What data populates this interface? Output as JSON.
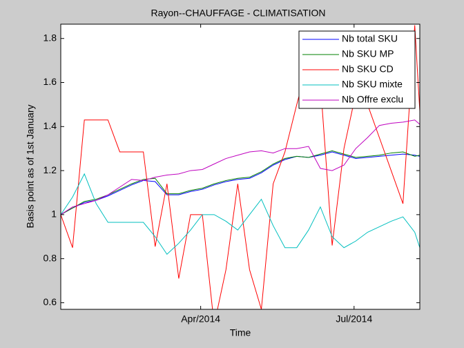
{
  "chart_data": {
    "type": "line",
    "title": "Rayon--CHAUFFAGE - CLIMATISATION",
    "xlabel": "Time",
    "ylabel": "Basis point as of 1st January",
    "x": [
      7,
      14,
      21,
      28,
      35,
      42,
      49,
      56,
      63,
      70,
      77,
      84,
      91,
      98,
      105,
      112,
      119,
      126,
      133,
      140,
      147,
      154,
      161,
      168,
      175,
      182,
      189,
      196,
      203,
      210,
      217,
      220
    ],
    "xlim": [
      7,
      220
    ],
    "xticks": [
      {
        "value": 90,
        "label": "Apr/2014"
      },
      {
        "value": 181,
        "label": "Jul/2014"
      }
    ],
    "ylim": [
      0.57,
      1.865
    ],
    "yticks": [
      0.6,
      0.8,
      1,
      1.2,
      1.4,
      1.6,
      1.8
    ],
    "legend": "northeast",
    "series": [
      {
        "name": "Nb total SKU",
        "color": "#0000ff",
        "values": [
          1.0,
          1.03,
          1.055,
          1.065,
          1.085,
          1.11,
          1.135,
          1.155,
          1.15,
          1.09,
          1.09,
          1.105,
          1.115,
          1.135,
          1.15,
          1.16,
          1.165,
          1.19,
          1.225,
          1.25,
          1.265,
          1.26,
          1.27,
          1.285,
          1.27,
          1.255,
          1.26,
          1.265,
          1.27,
          1.275,
          1.27,
          1.265
        ]
      },
      {
        "name": "Nb SKU MP",
        "color": "#008000",
        "values": [
          1.0,
          1.03,
          1.06,
          1.07,
          1.09,
          1.115,
          1.14,
          1.16,
          1.165,
          1.095,
          1.095,
          1.11,
          1.12,
          1.14,
          1.155,
          1.165,
          1.17,
          1.195,
          1.23,
          1.255,
          1.265,
          1.26,
          1.275,
          1.29,
          1.275,
          1.26,
          1.265,
          1.27,
          1.28,
          1.285,
          1.265,
          1.27
        ]
      },
      {
        "name": "Nb SKU CD",
        "color": "#ff0000",
        "values": [
          1.0,
          0.85,
          1.43,
          1.43,
          1.43,
          1.285,
          1.285,
          1.285,
          0.855,
          1.14,
          0.71,
          1.0,
          1.0,
          0.5,
          0.75,
          1.14,
          0.75,
          0.57,
          1.14,
          1.285,
          1.5,
          1.7,
          1.6,
          0.86,
          1.3,
          1.55,
          1.5,
          1.35,
          1.2,
          1.05,
          1.86,
          1.47
        ]
      },
      {
        "name": "Nb SKU mixte",
        "color": "#00bfbf",
        "values": [
          1.0,
          1.08,
          1.185,
          1.05,
          0.965,
          0.965,
          0.965,
          0.965,
          0.9,
          0.82,
          0.87,
          0.93,
          1.0,
          1.0,
          0.97,
          0.93,
          1.0,
          1.07,
          0.95,
          0.85,
          0.85,
          0.93,
          1.035,
          0.9,
          0.85,
          0.88,
          0.92,
          0.945,
          0.97,
          0.99,
          0.92,
          0.85
        ]
      },
      {
        "name": "Nb Offre exclu",
        "color": "#bf00bf",
        "values": [
          1.0,
          1.035,
          1.05,
          1.065,
          1.09,
          1.125,
          1.16,
          1.155,
          1.17,
          1.18,
          1.185,
          1.2,
          1.205,
          1.23,
          1.255,
          1.27,
          1.285,
          1.29,
          1.28,
          1.3,
          1.3,
          1.31,
          1.21,
          1.2,
          1.225,
          1.3,
          1.35,
          1.405,
          1.415,
          1.42,
          1.43,
          1.41
        ]
      }
    ]
  }
}
